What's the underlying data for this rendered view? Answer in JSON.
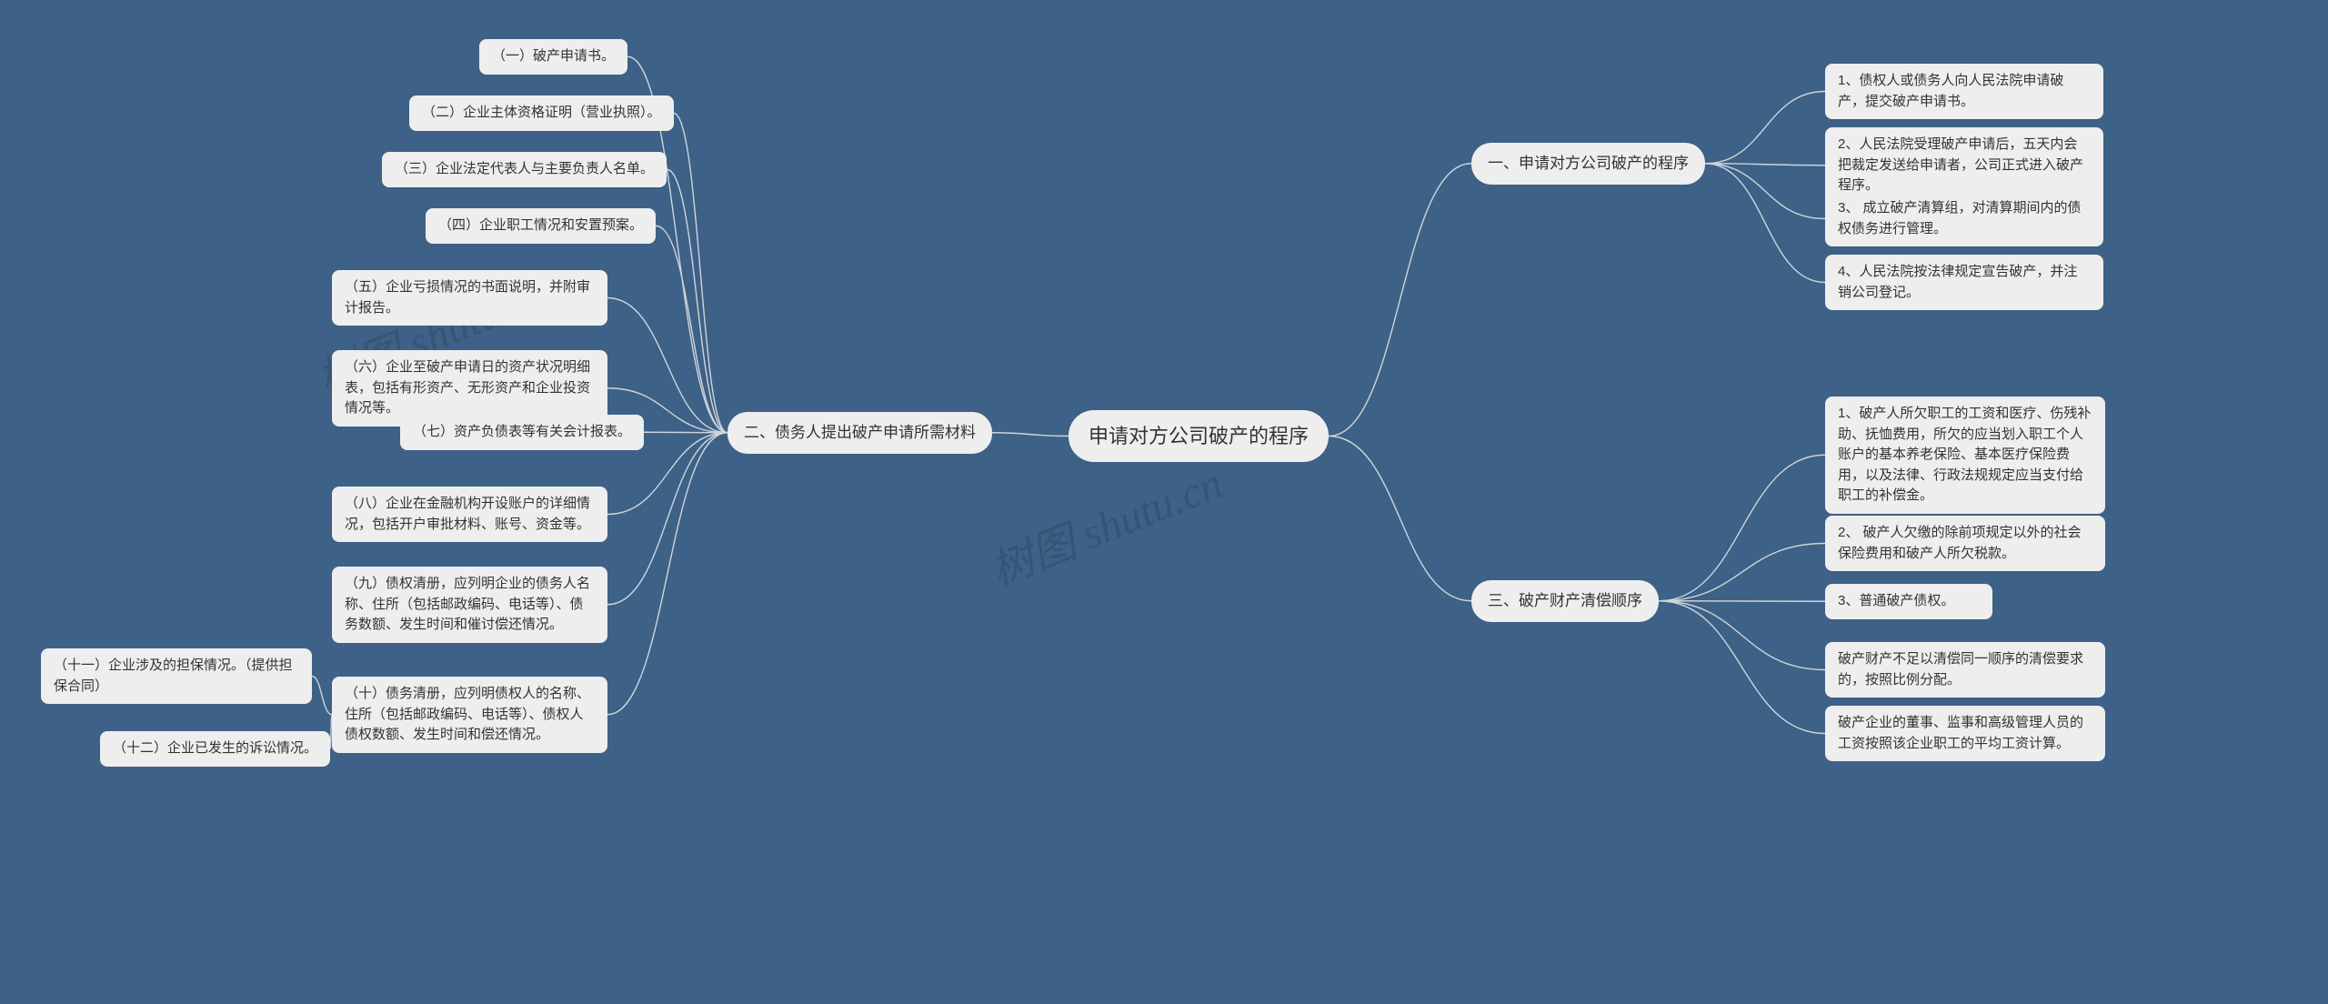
{
  "background_color": "#3d6187",
  "node_bg": "#eeeeee",
  "node_text_color": "#333333",
  "connector_color": "#d0d4d8",
  "watermark_text": "树图 shutu.cn",
  "root": {
    "label": "申请对方公司破产的程序"
  },
  "branch1": {
    "label": "一、申请对方公司破产的程序",
    "children": [
      "1、债权人或债务人向人民法院申请破产，提交破产申请书。",
      "2、人民法院受理破产申请后，五天内会把裁定发送给申请者，公司正式进入破产程序。",
      "3、 成立破产清算组，对清算期间内的债权债务进行管理。",
      "4、人民法院按法律规定宣告破产，并注销公司登记。"
    ]
  },
  "branch3": {
    "label": "三、破产财产清偿顺序",
    "children": [
      "1、破产人所欠职工的工资和医疗、伤残补助、抚恤费用，所欠的应当划入职工个人账户的基本养老保险、基本医疗保险费用，以及法律、行政法规规定应当支付给职工的补偿金。",
      "2、 破产人欠缴的除前项规定以外的社会保险费用和破产人所欠税款。",
      "3、普通破产债权。",
      "破产财产不足以清偿同一顺序的清偿要求的，按照比例分配。",
      "破产企业的董事、监事和高级管理人员的工资按照该企业职工的平均工资计算。"
    ]
  },
  "branch2": {
    "label": "二、债务人提出破产申请所需材料",
    "children": [
      "（一）破产申请书。",
      "（二）企业主体资格证明（营业执照）。",
      "（三）企业法定代表人与主要负责人名单。",
      "（四）企业职工情况和安置预案。",
      "（五）企业亏损情况的书面说明，并附审计报告。",
      "（六）企业至破产申请日的资产状况明细表，包括有形资产、无形资产和企业投资情况等。",
      "（七）资产负债表等有关会计报表。",
      "（八）企业在金融机构开设账户的详细情况，包括开户审批材料、账号、资金等。",
      "（九）债权清册，应列明企业的债务人名称、住所（包括邮政编码、电话等）、债务数额、发生时间和催讨偿还情况。",
      "（十）债务清册，应列明债权人的名称、住所（包括邮政编码、电话等）、债权人债权数额、发生时间和偿还情况。"
    ],
    "sub10": [
      "（十一）企业涉及的担保情况。（提供担保合同）",
      "（十二）企业已发生的诉讼情况。"
    ]
  }
}
